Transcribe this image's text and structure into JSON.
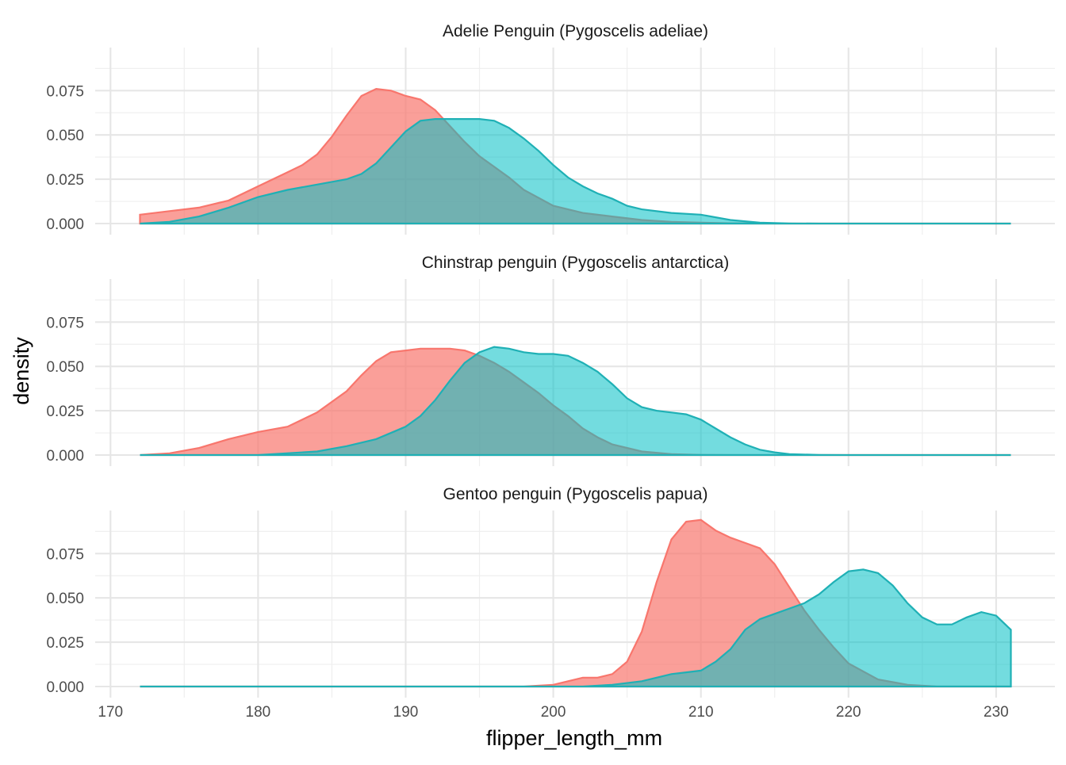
{
  "colors": {
    "female": "#F8766D",
    "male": "#00BFC4"
  },
  "chart_data": {
    "type": "area",
    "xlabel": "flipper_length_mm",
    "ylabel": "density",
    "xlim": [
      172,
      231
    ],
    "ylim": [
      0,
      0.097
    ],
    "xticks": [
      170,
      180,
      190,
      200,
      210,
      220,
      230
    ],
    "yticks": [
      0.0,
      0.025,
      0.05,
      0.075
    ],
    "xtick_labels": [
      "170",
      "180",
      "190",
      "200",
      "210",
      "220",
      "230"
    ],
    "ytick_labels": [
      "0.000",
      "0.025",
      "0.050",
      "0.075"
    ],
    "grid": true,
    "legend": "none",
    "facets": [
      {
        "title": "Adelie Penguin (Pygoscelis adeliae)",
        "series": [
          {
            "color": "#F8766D",
            "x": [
              172,
              174,
              176,
              178,
              180,
              182,
              183,
              184,
              185,
              186,
              187,
              188,
              189,
              190,
              191,
              192,
              193,
              194,
              195,
              196,
              197,
              198,
              200,
              202,
              204,
              206,
              208,
              210,
              212,
              214,
              216,
              231
            ],
            "y": [
              0.005,
              0.007,
              0.009,
              0.013,
              0.021,
              0.029,
              0.033,
              0.039,
              0.049,
              0.061,
              0.072,
              0.076,
              0.075,
              0.072,
              0.07,
              0.064,
              0.055,
              0.046,
              0.038,
              0.032,
              0.026,
              0.019,
              0.01,
              0.006,
              0.004,
              0.002,
              0.001,
              0.0005,
              0.0002,
              0.0001,
              0.0,
              0.0
            ]
          },
          {
            "color": "#00BFC4",
            "x": [
              172,
              174,
              176,
              178,
              180,
              182,
              184,
              186,
              187,
              188,
              189,
              190,
              191,
              192,
              193,
              194,
              195,
              196,
              197,
              198,
              199,
              200,
              201,
              202,
              203,
              204,
              205,
              206,
              208,
              210,
              212,
              214,
              216,
              218,
              231
            ],
            "y": [
              0.0,
              0.001,
              0.004,
              0.009,
              0.015,
              0.019,
              0.022,
              0.025,
              0.028,
              0.034,
              0.043,
              0.052,
              0.058,
              0.059,
              0.059,
              0.059,
              0.059,
              0.058,
              0.054,
              0.048,
              0.041,
              0.033,
              0.026,
              0.021,
              0.017,
              0.014,
              0.01,
              0.008,
              0.006,
              0.005,
              0.002,
              0.0005,
              0.0001,
              0.0,
              0.0
            ]
          }
        ]
      },
      {
        "title": "Chinstrap penguin (Pygoscelis antarctica)",
        "series": [
          {
            "color": "#F8766D",
            "x": [
              172,
              174,
              176,
              178,
              180,
              182,
              184,
              186,
              187,
              188,
              189,
              190,
              191,
              192,
              193,
              194,
              195,
              196,
              197,
              198,
              199,
              200,
              201,
              202,
              203,
              204,
              206,
              208,
              210,
              212,
              231
            ],
            "y": [
              0.0,
              0.001,
              0.004,
              0.009,
              0.013,
              0.016,
              0.024,
              0.036,
              0.045,
              0.053,
              0.058,
              0.059,
              0.06,
              0.06,
              0.06,
              0.059,
              0.056,
              0.052,
              0.047,
              0.041,
              0.035,
              0.028,
              0.022,
              0.015,
              0.01,
              0.006,
              0.002,
              0.0005,
              0.0001,
              0.0,
              0.0
            ]
          },
          {
            "color": "#00BFC4",
            "x": [
              172,
              180,
              184,
              186,
              188,
              190,
              191,
              192,
              193,
              194,
              195,
              196,
              197,
              198,
              199,
              200,
              201,
              202,
              203,
              204,
              205,
              206,
              207,
              208,
              209,
              210,
              211,
              212,
              213,
              214,
              215,
              216,
              218,
              220,
              231
            ],
            "y": [
              0.0,
              0.0,
              0.002,
              0.005,
              0.009,
              0.016,
              0.022,
              0.031,
              0.042,
              0.052,
              0.058,
              0.061,
              0.06,
              0.058,
              0.057,
              0.057,
              0.056,
              0.052,
              0.047,
              0.04,
              0.032,
              0.027,
              0.025,
              0.024,
              0.023,
              0.02,
              0.015,
              0.01,
              0.006,
              0.003,
              0.0015,
              0.0005,
              0.0001,
              0.0,
              0.0
            ]
          }
        ]
      },
      {
        "title": "Gentoo penguin (Pygoscelis papua)",
        "series": [
          {
            "color": "#F8766D",
            "x": [
              172,
              198,
              200,
              201,
              202,
              203,
              204,
              205,
              206,
              207,
              208,
              209,
              210,
              211,
              212,
              213,
              214,
              215,
              216,
              217,
              218,
              219,
              220,
              222,
              224,
              226,
              231
            ],
            "y": [
              0.0,
              0.0,
              0.001,
              0.003,
              0.005,
              0.005,
              0.007,
              0.014,
              0.031,
              0.059,
              0.083,
              0.093,
              0.094,
              0.088,
              0.084,
              0.081,
              0.078,
              0.069,
              0.056,
              0.043,
              0.032,
              0.022,
              0.013,
              0.004,
              0.001,
              0.0,
              0.0
            ]
          },
          {
            "color": "#00BFC4",
            "x": [
              172,
              202,
              204,
              206,
              207,
              208,
              209,
              210,
              211,
              212,
              213,
              214,
              215,
              216,
              217,
              218,
              219,
              220,
              221,
              222,
              223,
              224,
              225,
              226,
              227,
              228,
              229,
              230,
              231
            ],
            "y": [
              0.0,
              0.0,
              0.001,
              0.003,
              0.005,
              0.007,
              0.008,
              0.009,
              0.014,
              0.021,
              0.032,
              0.038,
              0.041,
              0.044,
              0.047,
              0.052,
              0.059,
              0.065,
              0.066,
              0.064,
              0.057,
              0.047,
              0.039,
              0.035,
              0.035,
              0.039,
              0.042,
              0.04,
              0.032
            ]
          }
        ]
      }
    ]
  }
}
